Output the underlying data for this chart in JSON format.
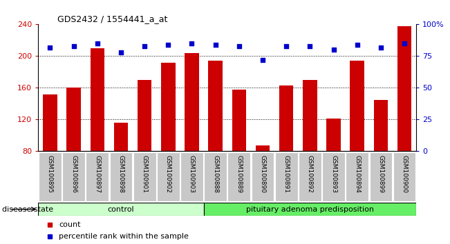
{
  "title": "GDS2432 / 1554441_a_at",
  "samples": [
    "GSM100895",
    "GSM100896",
    "GSM100897",
    "GSM100898",
    "GSM100901",
    "GSM100902",
    "GSM100903",
    "GSM100888",
    "GSM100889",
    "GSM100890",
    "GSM100891",
    "GSM100892",
    "GSM100893",
    "GSM100894",
    "GSM100899",
    "GSM100900"
  ],
  "counts": [
    152,
    160,
    210,
    116,
    170,
    192,
    204,
    194,
    158,
    87,
    163,
    170,
    121,
    194,
    145,
    238
  ],
  "percentiles": [
    82,
    83,
    85,
    78,
    83,
    84,
    85,
    84,
    83,
    72,
    83,
    83,
    80,
    84,
    82,
    85
  ],
  "control_count": 7,
  "group_labels": [
    "control",
    "pituitary adenoma predisposition"
  ],
  "ylim_left": [
    80,
    240
  ],
  "ylim_right": [
    0,
    100
  ],
  "yticks_left": [
    80,
    120,
    160,
    200,
    240
  ],
  "yticks_right": [
    0,
    25,
    50,
    75,
    100
  ],
  "ytick_right_labels": [
    "0",
    "25",
    "50",
    "75",
    "100%"
  ],
  "bar_color": "#cc0000",
  "dot_color": "#0000cc",
  "bg_color": "#ffffff",
  "tick_bg": "#c8c8c8",
  "group1_color": "#ccffcc",
  "group2_color": "#66ee66",
  "legend_items": [
    "count",
    "percentile rank within the sample"
  ],
  "disease_state_label": "disease state"
}
